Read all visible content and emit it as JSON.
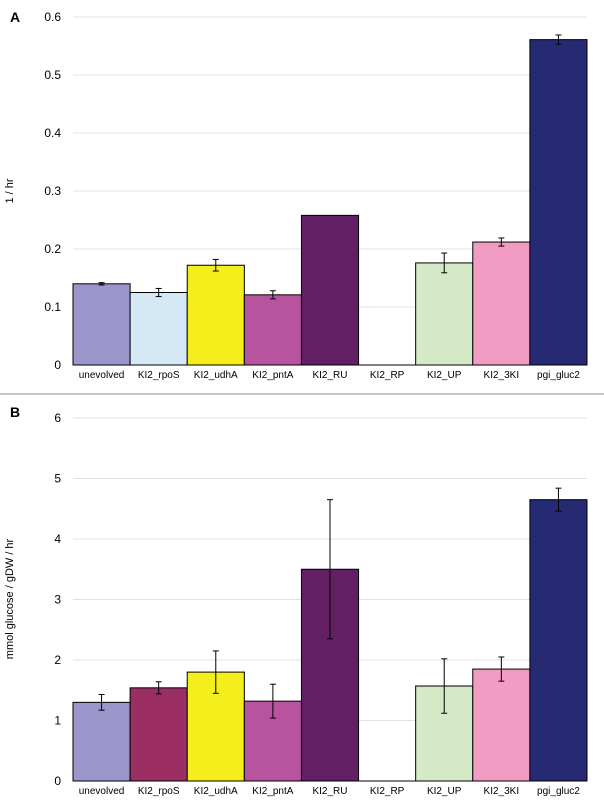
{
  "chart_data": [
    {
      "type": "bar",
      "panel": "A",
      "title": "",
      "xlabel": "",
      "ylabel": "1 / hr",
      "ylim": [
        0,
        0.6
      ],
      "yticks": [
        "0",
        "0.1",
        "0.2",
        "0.3",
        "0.4",
        "0.5",
        "0.6"
      ],
      "grid": true,
      "categories": [
        "unevolved",
        "KI2_rpoS",
        "KI2_udhA",
        "KI2_pntA",
        "KI2_RU",
        "KI2_RP",
        "KI2_UP",
        "KI2_3KI",
        "pgi_gluc2"
      ],
      "values": [
        0.14,
        0.125,
        0.172,
        0.121,
        0.258,
        null,
        0.176,
        0.212,
        0.561
      ],
      "errors": [
        0.002,
        0.007,
        0.01,
        0.007,
        null,
        null,
        0.017,
        0.007,
        0.008
      ],
      "colors": [
        "#9a96cb",
        "#d4e9f5",
        "#f4ef1c",
        "#b8549f",
        "#631f63",
        "#ffffff",
        "#d4e9c6",
        "#f29cc3",
        "#262a72"
      ]
    },
    {
      "type": "bar",
      "panel": "B",
      "title": "",
      "xlabel": "",
      "ylabel": "mmol glucose / gDW / hr",
      "ylim": [
        0,
        6
      ],
      "yticks": [
        "0",
        "1",
        "2",
        "3",
        "4",
        "5",
        "6"
      ],
      "grid": true,
      "categories": [
        "unevolved",
        "KI2_rpoS",
        "KI2_udhA",
        "KI2_pntA",
        "KI2_RU",
        "KI2_RP",
        "KI2_UP",
        "KI2_3KI",
        "pgi_gluc2"
      ],
      "values": [
        1.3,
        1.54,
        1.8,
        1.32,
        3.5,
        null,
        1.57,
        1.85,
        4.65
      ],
      "errors": [
        0.13,
        0.1,
        0.35,
        0.28,
        1.15,
        null,
        0.45,
        0.2,
        0.19
      ],
      "colors": [
        "#9a96cb",
        "#9b2f64",
        "#f4ef1c",
        "#b8549f",
        "#631f63",
        "#ffffff",
        "#d4e9c6",
        "#f29cc3",
        "#262a72"
      ]
    }
  ]
}
